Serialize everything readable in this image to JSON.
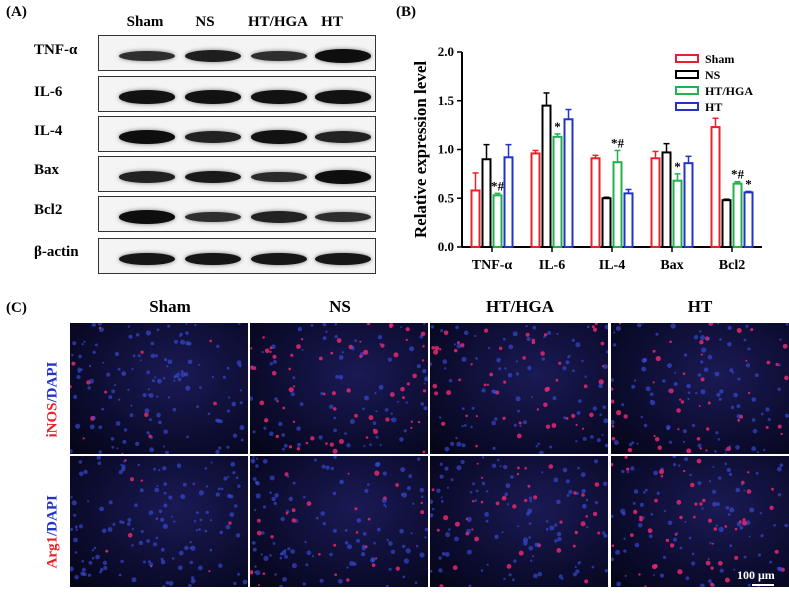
{
  "panels": {
    "a": "(A)",
    "b": "(B)",
    "c": "(C)"
  },
  "western_blot": {
    "columns": [
      "Sham",
      "NS",
      "HT/HGA",
      "HT"
    ],
    "rows": [
      "TNF-α",
      "IL-6",
      "IL-4",
      "Bax",
      "Bcl2",
      "β-actin"
    ],
    "intensity": [
      [
        0.55,
        0.75,
        0.55,
        0.95
      ],
      [
        0.9,
        0.9,
        0.9,
        0.9
      ],
      [
        0.95,
        0.7,
        0.9,
        0.7
      ],
      [
        0.7,
        0.8,
        0.6,
        0.95
      ],
      [
        0.95,
        0.55,
        0.7,
        0.55
      ],
      [
        0.85,
        0.85,
        0.85,
        0.85
      ]
    ]
  },
  "chart_data": {
    "type": "bar",
    "ylabel": "Relative expression level",
    "ylim": [
      0,
      2.0
    ],
    "yticks": [
      "0.0",
      "0.5",
      "1.0",
      "1.5",
      "2.0"
    ],
    "categories": [
      "TNF-α",
      "IL-6",
      "IL-4",
      "Bax",
      "Bcl2"
    ],
    "legend_position": "top-right",
    "series": [
      {
        "name": "Sham",
        "color": "#e8202a",
        "values": [
          0.58,
          0.96,
          0.91,
          0.91,
          1.23
        ],
        "errors": [
          0.18,
          0.03,
          0.03,
          0.07,
          0.09
        ]
      },
      {
        "name": "NS",
        "color": "#000000",
        "values": [
          0.9,
          1.45,
          0.5,
          0.97,
          0.48
        ],
        "errors": [
          0.15,
          0.13,
          0.01,
          0.09,
          0.01
        ]
      },
      {
        "name": "HT/HGA",
        "color": "#22b24c",
        "values": [
          0.53,
          1.13,
          0.87,
          0.68,
          0.65
        ],
        "errors": [
          0.02,
          0.03,
          0.12,
          0.07,
          0.02
        ]
      },
      {
        "name": "HT",
        "color": "#2233cc",
        "values": [
          0.92,
          1.31,
          0.55,
          0.86,
          0.56
        ],
        "errors": [
          0.13,
          0.1,
          0.04,
          0.07,
          0.01
        ]
      }
    ],
    "annotations": [
      {
        "category": "TNF-α",
        "series": "HT/HGA",
        "text": "*#"
      },
      {
        "category": "IL-6",
        "series": "HT/HGA",
        "text": "*"
      },
      {
        "category": "IL-4",
        "series": "HT/HGA",
        "text": "*#"
      },
      {
        "category": "Bax",
        "series": "HT/HGA",
        "text": "*"
      },
      {
        "category": "Bcl2",
        "series": "HT/HGA",
        "text": "*#"
      },
      {
        "category": "Bcl2",
        "series": "HT",
        "text": "*"
      }
    ]
  },
  "fluorescence": {
    "columns": [
      "Sham",
      "NS",
      "HT/HGA",
      "HT"
    ],
    "rows": [
      {
        "marker": "iNOS",
        "stain": "/DAPI"
      },
      {
        "marker": "Arg1",
        "stain": "/DAPI"
      }
    ],
    "red_level": [
      [
        0.15,
        0.8,
        0.6,
        0.55
      ],
      [
        0.1,
        0.3,
        0.55,
        0.5
      ]
    ],
    "scale_bar": "100 μm"
  }
}
